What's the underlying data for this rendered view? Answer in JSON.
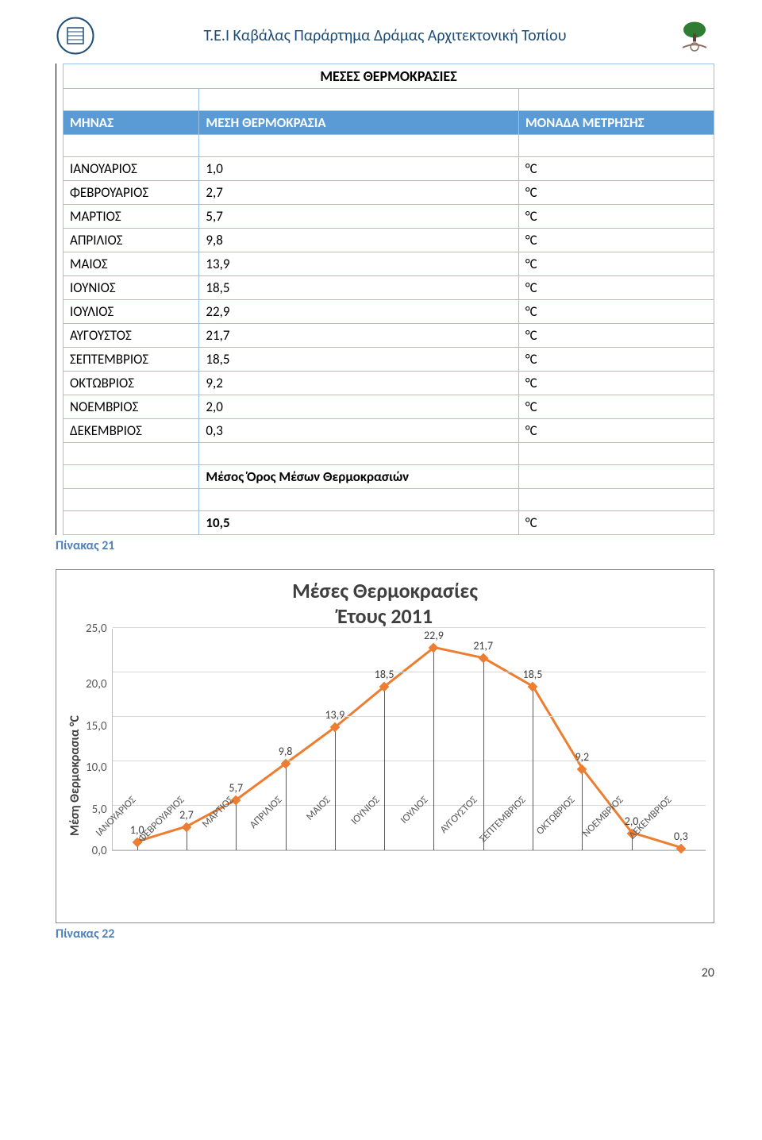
{
  "header": {
    "title": "Τ.Ε.Ι Καβάλας  Παράρτημα Δράμας  Αρχιτεκτονική Τοπίου"
  },
  "table": {
    "title": "ΜΕΣΕΣ ΘΕΡΜΟΚΡΑΣΙΕΣ",
    "columns": [
      "ΜΗΝΑΣ",
      "ΜΕΣΗ ΘΕΡΜΟΚΡΑΣΙΑ",
      "ΜΟΝΑΔΑ ΜΕΤΡΗΣΗΣ"
    ],
    "rows": [
      {
        "m": "ΙΑΝΟΥΑΡΙΟΣ",
        "v": "1,0",
        "u": "°C"
      },
      {
        "m": "ΦΕΒΡΟΥΑΡΙΟΣ",
        "v": "2,7",
        "u": "°C"
      },
      {
        "m": "ΜΑΡΤΙΟΣ",
        "v": "5,7",
        "u": "°C"
      },
      {
        "m": "ΑΠΡΙΛΙΟΣ",
        "v": "9,8",
        "u": "°C"
      },
      {
        "m": "ΜΑΙΟΣ",
        "v": "13,9",
        "u": "°C"
      },
      {
        "m": "ΙΟΥΝΙΟΣ",
        "v": "18,5",
        "u": "°C"
      },
      {
        "m": "ΙΟΥΛΙΟΣ",
        "v": "22,9",
        "u": "°C"
      },
      {
        "m": "ΑΥΓΟΥΣΤΟΣ",
        "v": "21,7",
        "u": "°C"
      },
      {
        "m": "ΣΕΠΤΕΜΒΡΙΟΣ",
        "v": "18,5",
        "u": "°C"
      },
      {
        "m": "ΟΚΤΩΒΡΙΟΣ",
        "v": "9,2",
        "u": "°C"
      },
      {
        "m": "ΝΟΕΜΒΡΙΟΣ",
        "v": "2,0",
        "u": "°C"
      },
      {
        "m": "ΔΕΚΕΜΒΡΙΟΣ",
        "v": "0,3",
        "u": "°C"
      }
    ],
    "avg_label": "Μέσος Όρος Μέσων Θερμοκρασιών",
    "avg_value": "10,5",
    "avg_unit": "°C"
  },
  "pinakas21": "Πίνακας 21",
  "pinakas22": "Πίνακας 22",
  "chart": {
    "type": "line",
    "title_l1": "Μέσες Θερμοκρασίες",
    "title_l2": "Έτους 2011",
    "ylabel": "Μέση Θερμοκρασια °C",
    "categories": [
      "ΙΑΝΟΥΑΡΙΟΣ",
      "ΦΕΒΡΟΥΑΡΙΟΣ",
      "ΜΑΡΤΙΟΣ",
      "ΑΠΡΙΛΙΟΣ",
      "ΜΑΙΟΣ",
      "ΙΟΥΝΙΟΣ",
      "ΙΟΥΛΙΟΣ",
      "ΑΥΓΟΥΣΤΟΣ",
      "ΣΕΠΤΕΜΒΡΙΟΣ",
      "ΟΚΤΩΒΡΙΟΣ",
      "ΝΟΕΜΒΡΙΟΣ",
      "ΔΕΚΕΜΒΡΙΟΣ"
    ],
    "values": [
      1.0,
      2.7,
      5.7,
      9.8,
      13.9,
      18.5,
      22.9,
      21.7,
      18.5,
      9.2,
      2.0,
      0.3
    ],
    "value_labels": [
      "1,0",
      "2,7",
      "5,7",
      "9,8",
      "13,9",
      "18,5",
      "22,9",
      "21,7",
      "18,5",
      "9,2",
      "2,0",
      "0,3"
    ],
    "ylim": [
      0,
      25
    ],
    "ytick_step": 5,
    "yticks": [
      "25,0",
      "20,0",
      "15,0",
      "10,0",
      "5,0",
      "0,0"
    ],
    "line_color": "#ed7d31",
    "marker_color": "#ed7d31",
    "grid_color": "#d9d9d9",
    "drop_color": "#595959",
    "line_width": 3,
    "title_fontsize": 26,
    "label_fontsize": 16
  },
  "page_number": "20"
}
